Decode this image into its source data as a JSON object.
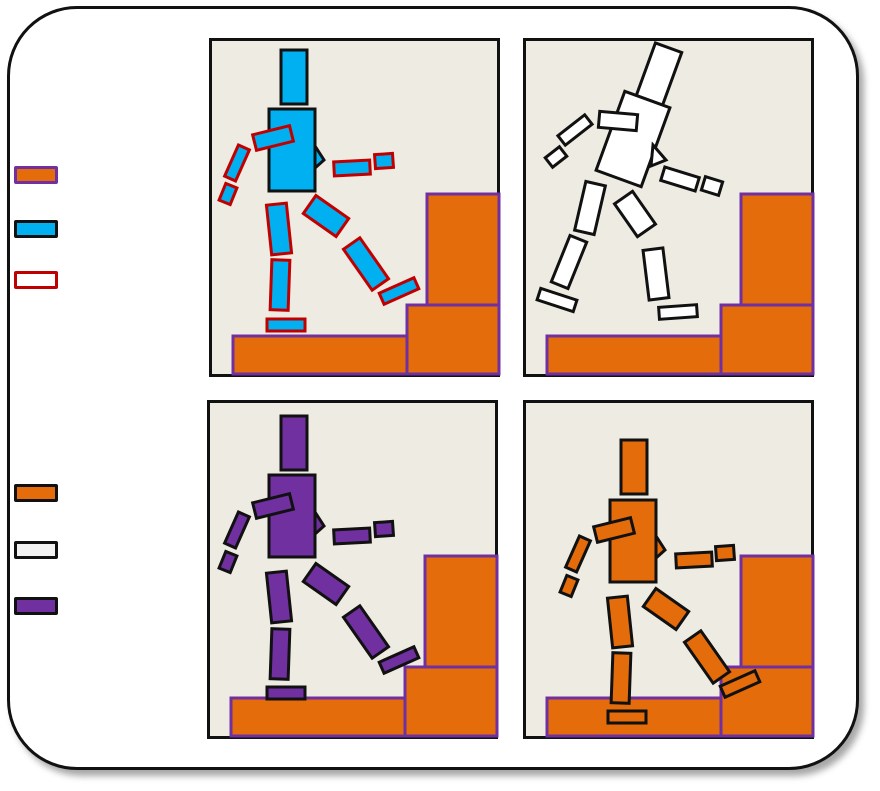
{
  "colors": {
    "orange": "#E46C0A",
    "blue": "#00B0F0",
    "purple": "#7030A0",
    "red": "#C00000",
    "white": "#FFFFFF",
    "panel_bg": "#EEEBE2",
    "swatch_white": "#F2F2F2",
    "outline": "#111111"
  },
  "legend_top": [
    {
      "icon": "orange-fill-purple-border-swatch"
    },
    {
      "icon": "blue-fill-swatch"
    },
    {
      "icon": "red-outline-swatch"
    }
  ],
  "legend_bottom": [
    {
      "icon": "orange-fill-swatch"
    },
    {
      "icon": "white-fill-swatch"
    },
    {
      "icon": "purple-fill-swatch"
    }
  ],
  "panels": [
    {
      "id": "top-left",
      "figure": "blue-red-outline"
    },
    {
      "id": "top-right",
      "figure": "white-outline"
    },
    {
      "id": "bottom-left",
      "figure": "purple"
    },
    {
      "id": "bottom-right",
      "figure": "orange"
    }
  ]
}
